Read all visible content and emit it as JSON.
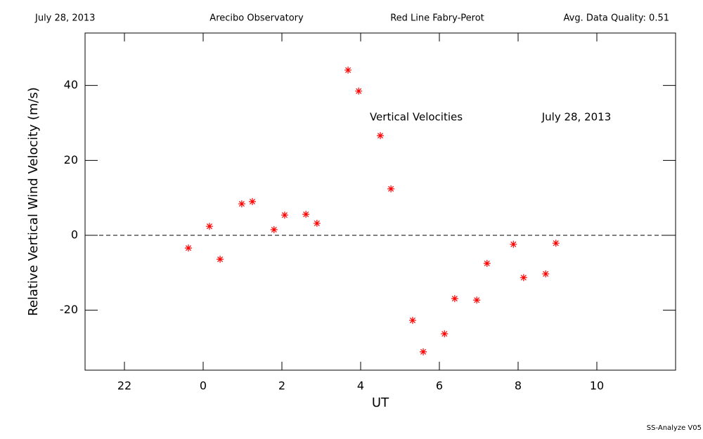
{
  "chart_data": {
    "type": "scatter",
    "header": [
      "July 28, 2013",
      "Arecibo Observatory",
      "Red Line Fabry-Perot",
      "Avg. Data Quality: 0.51"
    ],
    "annotations": [
      "Vertical Velocities",
      "July 28, 2013"
    ],
    "footer": "SS-Analyze V05",
    "xlabel": "UT",
    "ylabel": "Relative Vertical Wind Velocity (m/s)",
    "xlim": [
      -3,
      12
    ],
    "ylim": [
      -36,
      54
    ],
    "xticks": [
      {
        "value": -2,
        "label": "22"
      },
      0,
      2,
      4,
      6,
      8,
      10
    ],
    "yticks": [
      -20,
      0,
      20,
      40
    ],
    "reference_line": 0,
    "color": "#ff0000",
    "x": [
      -0.375,
      0.16,
      0.43,
      0.98,
      1.25,
      1.8,
      2.07,
      2.61,
      2.89,
      3.68,
      3.95,
      4.5,
      4.77,
      5.32,
      5.59,
      6.13,
      6.39,
      6.95,
      7.21,
      7.88,
      8.14,
      8.7,
      8.96
    ],
    "values": [
      -3.4,
      2.4,
      -6.4,
      8.4,
      9.0,
      1.5,
      5.4,
      5.6,
      3.2,
      44.1,
      38.5,
      26.6,
      12.4,
      -22.7,
      -31.1,
      -26.3,
      -16.9,
      -17.3,
      -7.5,
      -2.4,
      -11.3,
      -10.3,
      -2.1
    ]
  }
}
